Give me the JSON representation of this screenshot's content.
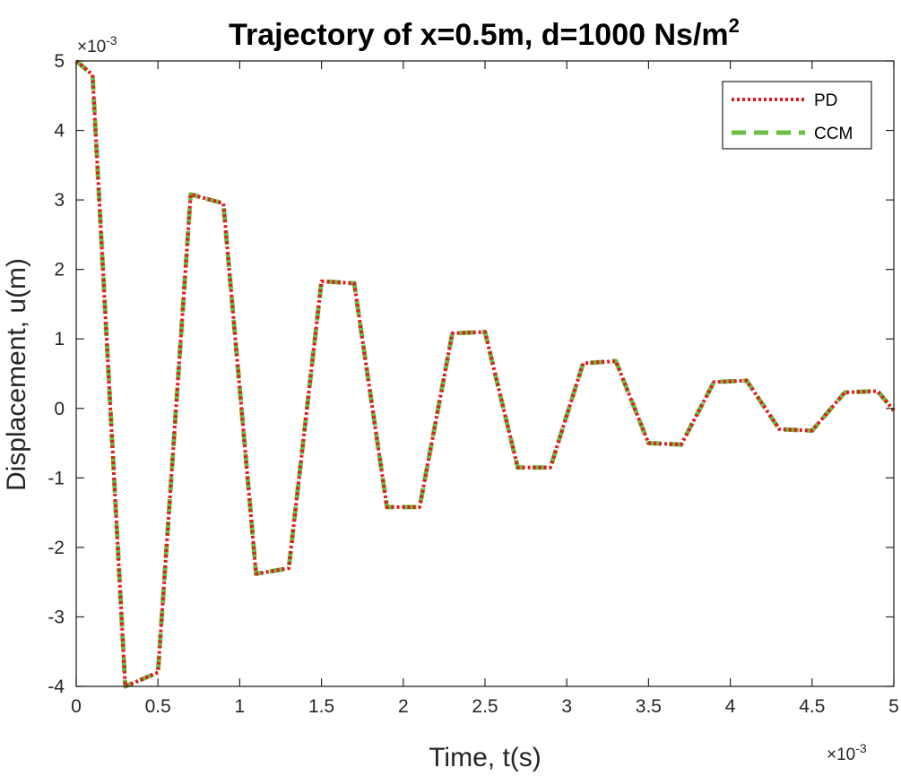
{
  "chart_data": {
    "type": "line",
    "title": "Trajectory of x=0.5m, d=1000 Ns/m",
    "title_superscript": "2",
    "xlabel": "Time, t(s)",
    "ylabel": "Displacement, u(m)",
    "x_exponent_label": "×10",
    "x_exponent_power": "-3",
    "y_exponent_label": "×10",
    "y_exponent_power": "-3",
    "xlim": [
      0,
      5
    ],
    "ylim": [
      -4,
      5
    ],
    "x_ticks": [
      0,
      0.5,
      1,
      1.5,
      2,
      2.5,
      3,
      3.5,
      4,
      4.5,
      5
    ],
    "x_tick_labels": [
      "0",
      "0.5",
      "1",
      "1.5",
      "2",
      "2.5",
      "3",
      "3.5",
      "4",
      "4.5",
      "5"
    ],
    "y_ticks": [
      -4,
      -3,
      -2,
      -1,
      0,
      1,
      2,
      3,
      4,
      5
    ],
    "y_tick_labels": [
      "-4",
      "-3",
      "-2",
      "-1",
      "0",
      "1",
      "2",
      "3",
      "4",
      "5"
    ],
    "grid": false,
    "legend_position": "top-right",
    "x": [
      0,
      0.1,
      0.3,
      0.5,
      0.7,
      0.9,
      1.1,
      1.3,
      1.5,
      1.7,
      1.9,
      2.1,
      2.3,
      2.5,
      2.7,
      2.9,
      3.1,
      3.3,
      3.5,
      3.7,
      3.9,
      4.1,
      4.3,
      4.5,
      4.7,
      4.9,
      5.0
    ],
    "series": [
      {
        "name": "PD",
        "color": "#e31a1c",
        "style": "dotted",
        "values": [
          5.0,
          4.8,
          -4.0,
          -3.8,
          3.08,
          2.95,
          -2.38,
          -2.3,
          1.83,
          1.8,
          -1.42,
          -1.42,
          1.08,
          1.1,
          -0.85,
          -0.85,
          0.65,
          0.68,
          -0.5,
          -0.52,
          0.38,
          0.4,
          -0.3,
          -0.32,
          0.23,
          0.25,
          -0.03
        ]
      },
      {
        "name": "CCM",
        "color": "#6abf45",
        "style": "dashed",
        "values": [
          5.0,
          4.8,
          -4.0,
          -3.8,
          3.08,
          2.95,
          -2.38,
          -2.3,
          1.83,
          1.8,
          -1.42,
          -1.42,
          1.08,
          1.1,
          -0.85,
          -0.85,
          0.65,
          0.68,
          -0.5,
          -0.52,
          0.38,
          0.4,
          -0.3,
          -0.32,
          0.23,
          0.25,
          -0.03
        ]
      }
    ]
  }
}
